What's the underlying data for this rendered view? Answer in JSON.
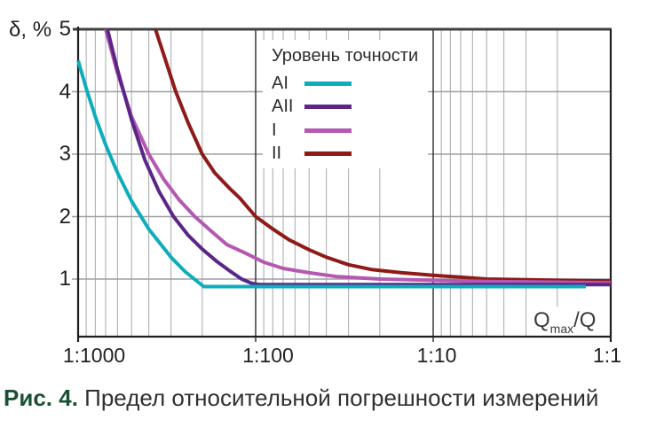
{
  "chart_data": {
    "type": "line",
    "title": "",
    "x_axis": {
      "label": {
        "base": "Q",
        "sub": "max",
        "rest": "/Q"
      },
      "scale": "log-ratio",
      "tick_labels": [
        "1:1000",
        "1:100",
        "1:10",
        "1:1"
      ],
      "tick_ratios": [
        1000,
        100,
        10,
        1
      ],
      "minor_multiples_per_decade": [
        9,
        8,
        7,
        6,
        5,
        4,
        3,
        2
      ]
    },
    "y_axis": {
      "label": "δ, %",
      "tick_labels": [
        "5",
        "4",
        "3",
        "2",
        "1"
      ],
      "tick_values": [
        5,
        4,
        3,
        2,
        1
      ],
      "gridlines_at": [
        4,
        3,
        2,
        1
      ],
      "shown_range": [
        1,
        5
      ]
    },
    "legend": {
      "title": "Уровень точности",
      "position": "inside-top"
    },
    "series": [
      {
        "name": "AI",
        "color": "#0eadbd",
        "points": [
          [
            1000,
            4.5
          ],
          [
            900,
            4.05
          ],
          [
            800,
            3.6
          ],
          [
            700,
            3.15
          ],
          [
            600,
            2.7
          ],
          [
            500,
            2.25
          ],
          [
            400,
            1.8
          ],
          [
            300,
            1.35
          ],
          [
            250,
            1.12
          ],
          [
            196,
            0.88
          ],
          [
            100,
            0.88
          ],
          [
            10,
            0.88
          ],
          [
            1.38,
            0.88
          ]
        ]
      },
      {
        "name": "AII",
        "color": "#5b2687",
        "points": [
          [
            684,
            5
          ],
          [
            600,
            4.35
          ],
          [
            500,
            3.55
          ],
          [
            420,
            2.9
          ],
          [
            350,
            2.4
          ],
          [
            290,
            2.0
          ],
          [
            240,
            1.7
          ],
          [
            200,
            1.48
          ],
          [
            165,
            1.28
          ],
          [
            140,
            1.13
          ],
          [
            120,
            1.0
          ],
          [
            105,
            0.93
          ],
          [
            95,
            0.91
          ],
          [
            50,
            0.91
          ],
          [
            10,
            0.91
          ],
          [
            1,
            0.91
          ]
        ]
      },
      {
        "name": "I",
        "color": "#b458b2",
        "points": [
          [
            700,
            5
          ],
          [
            600,
            4.3
          ],
          [
            500,
            3.6
          ],
          [
            400,
            3.0
          ],
          [
            330,
            2.6
          ],
          [
            270,
            2.27
          ],
          [
            220,
            2.0
          ],
          [
            180,
            1.78
          ],
          [
            145,
            1.55
          ],
          [
            115,
            1.42
          ],
          [
            90,
            1.27
          ],
          [
            70,
            1.17
          ],
          [
            50,
            1.1
          ],
          [
            35,
            1.04
          ],
          [
            20,
            1.0
          ],
          [
            10,
            0.98
          ],
          [
            5,
            0.96
          ],
          [
            2,
            0.95
          ],
          [
            1,
            0.94
          ]
        ]
      },
      {
        "name": "II",
        "color": "#8e1b18",
        "points": [
          [
            367,
            5
          ],
          [
            330,
            4.6
          ],
          [
            282,
            4.0
          ],
          [
            240,
            3.5
          ],
          [
            200,
            3.0
          ],
          [
            170,
            2.7
          ],
          [
            140,
            2.45
          ],
          [
            123,
            2.3
          ],
          [
            100,
            2.0
          ],
          [
            80,
            1.8
          ],
          [
            65,
            1.63
          ],
          [
            50,
            1.47
          ],
          [
            40,
            1.35
          ],
          [
            30,
            1.23
          ],
          [
            22,
            1.15
          ],
          [
            15,
            1.1
          ],
          [
            10,
            1.06
          ],
          [
            7,
            1.03
          ],
          [
            5,
            1.0
          ],
          [
            3,
            0.99
          ],
          [
            2,
            0.98
          ],
          [
            1,
            0.97
          ]
        ]
      }
    ]
  },
  "caption": {
    "label": "Рис. 4.",
    "label_color": "#1a5132",
    "text": "Предел относительной погрешности измерений"
  },
  "colors": {
    "axis": "#231f20",
    "frame_top": "#3e4042",
    "grid_minor": "#b4b6b8",
    "grid_major_horizontal": "#9ea0a3",
    "grid_major_vertical": "#2b2b2b",
    "background": "#ffffff"
  }
}
